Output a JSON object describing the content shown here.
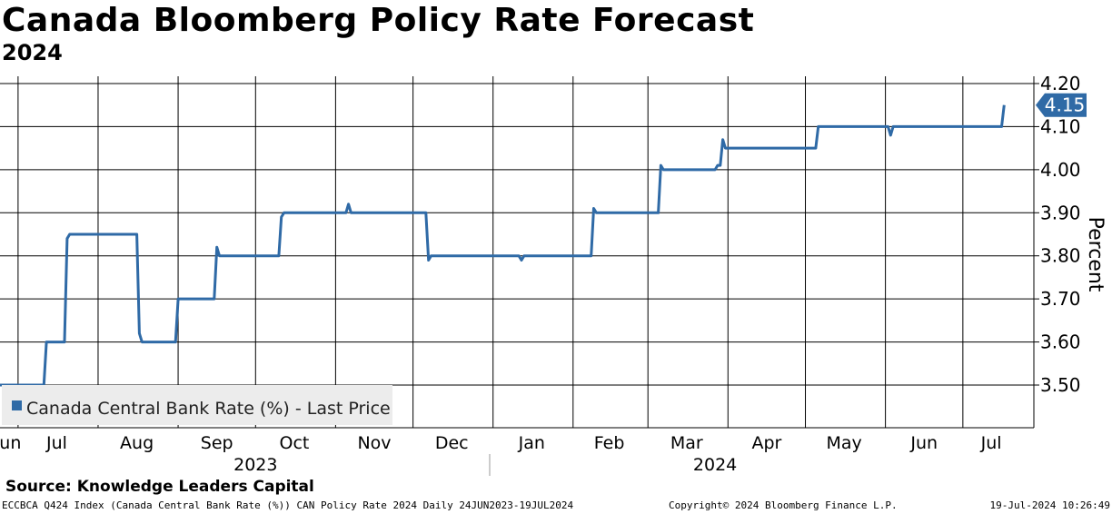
{
  "title": "Canada Bloomberg Policy Rate Forecast",
  "subtitle": "2024",
  "source": "Source: Knowledge Leaders Capital",
  "footer": {
    "left": "ECCBCA Q424 Index (Canada Central Bank Rate (%)) CAN Policy Rate 2024  Daily 24JUN2023-19JUL2024",
    "middle": "Copyright© 2024 Bloomberg Finance L.P.",
    "right": "19-Jul-2024 10:26:49"
  },
  "chart_data": {
    "type": "line",
    "title": "Canada Bloomberg Policy Rate Forecast",
    "subtitle": "2024",
    "ylabel": "Percent",
    "ylim": [
      3.4,
      4.2
    ],
    "yticks": [
      "3.50",
      "3.60",
      "3.70",
      "3.80",
      "3.90",
      "4.00",
      "4.10",
      "4.20"
    ],
    "xlim": [
      "2023-06-24",
      "2024-07-19"
    ],
    "month_labels": [
      "Jun",
      "Jul",
      "Aug",
      "Sep",
      "Oct",
      "Nov",
      "Dec",
      "Jan",
      "Feb",
      "Mar",
      "Apr",
      "May",
      "Jun",
      "Jul"
    ],
    "year_labels": [
      "2023",
      "2024"
    ],
    "grid": true,
    "legend": "bottom-left",
    "last_value_label": "4.15",
    "line_color": "#2f6aa6",
    "series": [
      {
        "name": "Canada Central Bank Rate (%) - Last Price",
        "points": [
          [
            "2023-06-24",
            3.5
          ],
          [
            "2023-07-11",
            3.5
          ],
          [
            "2023-07-12",
            3.6
          ],
          [
            "2023-07-19",
            3.6
          ],
          [
            "2023-07-20",
            3.84
          ],
          [
            "2023-07-21",
            3.85
          ],
          [
            "2023-08-16",
            3.85
          ],
          [
            "2023-08-17",
            3.62
          ],
          [
            "2023-08-18",
            3.6
          ],
          [
            "2023-08-31",
            3.6
          ],
          [
            "2023-09-01",
            3.7
          ],
          [
            "2023-09-15",
            3.7
          ],
          [
            "2023-09-16",
            3.82
          ],
          [
            "2023-09-17",
            3.8
          ],
          [
            "2023-10-10",
            3.8
          ],
          [
            "2023-10-11",
            3.89
          ],
          [
            "2023-10-12",
            3.9
          ],
          [
            "2023-11-05",
            3.9
          ],
          [
            "2023-11-06",
            3.92
          ],
          [
            "2023-11-07",
            3.9
          ],
          [
            "2023-12-06",
            3.9
          ],
          [
            "2023-12-07",
            3.79
          ],
          [
            "2023-12-08",
            3.8
          ],
          [
            "2024-01-11",
            3.8
          ],
          [
            "2024-01-12",
            3.79
          ],
          [
            "2024-01-13",
            3.8
          ],
          [
            "2024-02-08",
            3.8
          ],
          [
            "2024-02-09",
            3.91
          ],
          [
            "2024-02-10",
            3.9
          ],
          [
            "2024-03-05",
            3.9
          ],
          [
            "2024-03-06",
            4.01
          ],
          [
            "2024-03-07",
            4.0
          ],
          [
            "2024-03-27",
            4.0
          ],
          [
            "2024-03-28",
            4.01
          ],
          [
            "2024-03-29",
            4.01
          ],
          [
            "2024-03-30",
            4.07
          ],
          [
            "2024-03-31",
            4.05
          ],
          [
            "2024-05-05",
            4.05
          ],
          [
            "2024-05-06",
            4.1
          ],
          [
            "2024-06-02",
            4.1
          ],
          [
            "2024-06-03",
            4.08
          ],
          [
            "2024-06-04",
            4.1
          ],
          [
            "2024-07-16",
            4.1
          ],
          [
            "2024-07-17",
            4.15
          ]
        ]
      }
    ]
  }
}
